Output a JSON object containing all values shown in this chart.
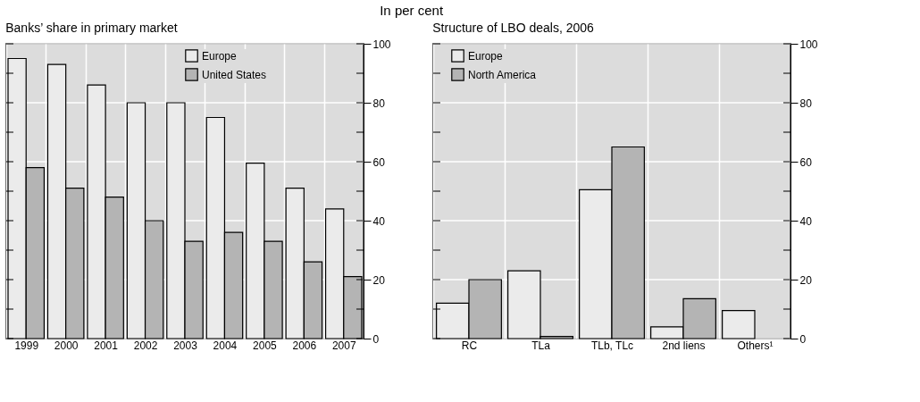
{
  "chart_data": [
    {
      "type": "bar",
      "subtitle": "In per cent",
      "title": "Banks’ share in primary market",
      "categories": [
        "1999",
        "2000",
        "2001",
        "2002",
        "2003",
        "2004",
        "2005",
        "2006",
        "2007"
      ],
      "series": [
        {
          "name": "Europe",
          "color": "#ebebeb",
          "values": [
            95,
            93,
            86,
            80,
            80,
            75,
            59.5,
            51,
            44
          ]
        },
        {
          "name": "United States",
          "color": "#b4b4b4",
          "values": [
            58,
            51,
            48,
            40,
            33,
            36,
            33,
            26,
            21
          ]
        }
      ],
      "ylim": [
        0,
        100
      ],
      "yticks": [
        0,
        {
          "value": 10,
          "label": null
        },
        20,
        {
          "value": 30,
          "label": null
        },
        40,
        {
          "value": 50,
          "label": null
        },
        60,
        {
          "value": 70,
          "label": null
        },
        80,
        {
          "value": 90,
          "label": null
        },
        100
      ],
      "grid": true,
      "legend": "top"
    },
    {
      "type": "bar",
      "title": "Structure of LBO deals, 2006",
      "categories": [
        "RC",
        "TLa",
        "TLb, TLc",
        "2nd liens",
        "Others¹"
      ],
      "series": [
        {
          "name": "Europe",
          "color": "#ebebeb",
          "values": [
            12,
            23,
            50.5,
            4,
            9.5
          ]
        },
        {
          "name": "North America",
          "color": "#b4b4b4",
          "values": [
            20,
            0.7,
            65,
            13.5,
            null
          ]
        }
      ],
      "ylim": [
        0,
        100
      ],
      "yticks": [
        0,
        {
          "value": 10,
          "label": null
        },
        20,
        {
          "value": 30,
          "label": null
        },
        40,
        {
          "value": 50,
          "label": null
        },
        60,
        {
          "value": 70,
          "label": null
        },
        80,
        {
          "value": 90,
          "label": null
        },
        100
      ],
      "grid": true,
      "legend": "top left"
    }
  ]
}
